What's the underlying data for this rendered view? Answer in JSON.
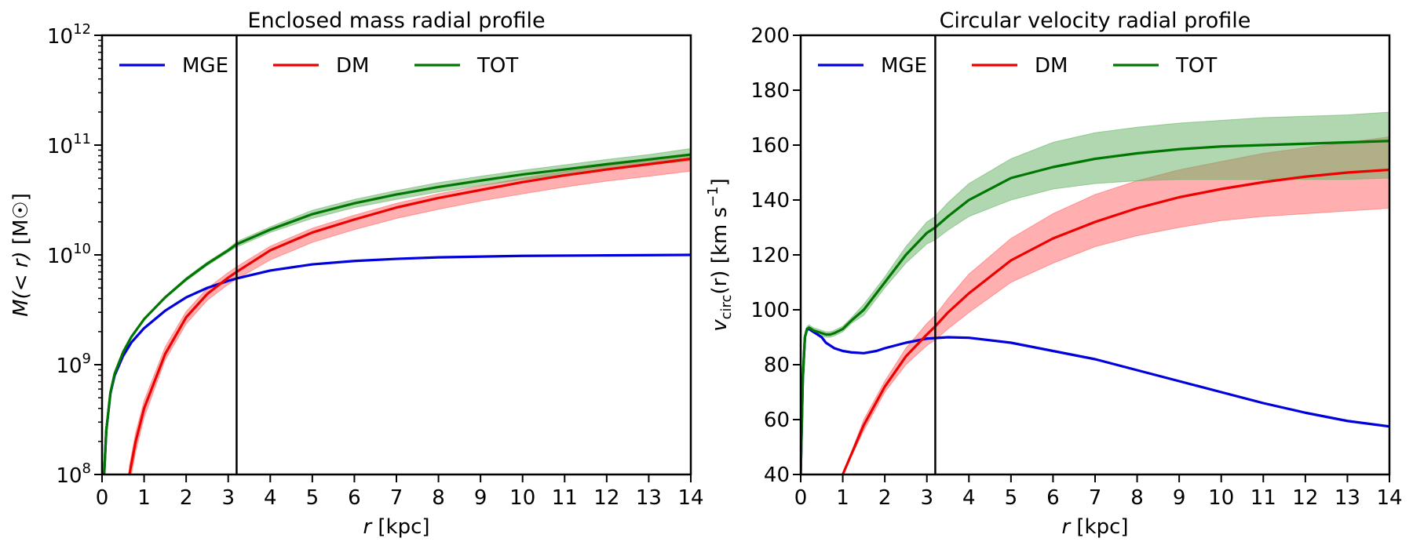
{
  "colors": {
    "MGE": "#0000dd",
    "DM": "#ee0000",
    "TOT": "#007700",
    "DM_band": "#ff6060",
    "TOT_band": "#62b062",
    "divider": "#000000"
  },
  "chart_data": [
    {
      "type": "line",
      "title": "Enclosed mass radial profile",
      "xlabel_var": "r",
      "xlabel_unit": "[kpc]",
      "ylabel_var": "M(< r)",
      "ylabel_unit": "[M☉]",
      "yscale": "log",
      "xlim": [
        0,
        14
      ],
      "ylim": [
        100000000.0,
        1000000000000.0
      ],
      "xticks": [
        0,
        1,
        2,
        3,
        4,
        5,
        6,
        7,
        8,
        9,
        10,
        11,
        12,
        13,
        14
      ],
      "yticks": [
        {
          "value": 100000000.0,
          "base": "10",
          "exp": "8"
        },
        {
          "value": 1000000000.0,
          "base": "10",
          "exp": "9"
        },
        {
          "value": 10000000000.0,
          "base": "10",
          "exp": "10"
        },
        {
          "value": 100000000000.0,
          "base": "10",
          "exp": "11"
        },
        {
          "value": 1000000000000.0,
          "base": "10",
          "exp": "12"
        }
      ],
      "vline_x": 3.2,
      "legend": [
        "MGE",
        "DM",
        "TOT"
      ],
      "legend_position": "top",
      "series": [
        {
          "name": "MGE",
          "x": [
            0.05,
            0.1,
            0.2,
            0.3,
            0.5,
            0.7,
            1,
            1.5,
            2,
            2.5,
            3,
            3.2,
            4,
            5,
            6,
            7,
            8,
            10,
            12,
            14
          ],
          "y": [
            100000000.0,
            250000000.0,
            550000000.0,
            800000000.0,
            1200000000.0,
            1600000000.0,
            2150000000.0,
            3100000000.0,
            4100000000.0,
            5000000000.0,
            5800000000.0,
            6100000000.0,
            7200000000.0,
            8200000000.0,
            8800000000.0,
            9200000000.0,
            9500000000.0,
            9800000000.0,
            9900000000.0,
            10000000000.0
          ]
        },
        {
          "name": "DM",
          "x": [
            0.65,
            0.8,
            1,
            1.5,
            2,
            2.5,
            3,
            3.2,
            4,
            5,
            6,
            7,
            8,
            9,
            10,
            11,
            12,
            13,
            14
          ],
          "y": [
            100000000.0,
            200000000.0,
            400000000.0,
            1250000000.0,
            2700000000.0,
            4400000000.0,
            6200000000.0,
            7000000000.0,
            11000000000.0,
            16000000000.0,
            21000000000.0,
            27000000000.0,
            33000000000.0,
            39000000000.0,
            46000000000.0,
            53000000000.0,
            60000000000.0,
            67000000000.0,
            75000000000.0
          ],
          "y_low": [
            80000000.0,
            160000000.0,
            330000000.0,
            1100000000.0,
            2350000000.0,
            3850000000.0,
            5400000000.0,
            6000000000.0,
            9000000000.0,
            13000000000.0,
            17000000000.0,
            21500000000.0,
            26000000000.0,
            31000000000.0,
            36000000000.0,
            41500000000.0,
            47000000000.0,
            52000000000.0,
            58000000000.0
          ],
          "y_high": [
            120000000.0,
            240000000.0,
            470000000.0,
            1450000000.0,
            3050000000.0,
            4950000000.0,
            6900000000.0,
            7800000000.0,
            12000000000.0,
            17500000000.0,
            23000000000.0,
            29500000000.0,
            36000000000.0,
            42500000000.0,
            50000000000.0,
            57500000000.0,
            65000000000.0,
            73000000000.0,
            81000000000.0
          ]
        },
        {
          "name": "TOT",
          "x": [
            0.05,
            0.1,
            0.2,
            0.3,
            0.5,
            0.7,
            1,
            1.5,
            2,
            2.5,
            3,
            3.2,
            4,
            5,
            6,
            7,
            8,
            9,
            10,
            11,
            12,
            13,
            14
          ],
          "y": [
            100000000.0,
            250000000.0,
            560000000.0,
            830000000.0,
            1300000000.0,
            1800000000.0,
            2600000000.0,
            4100000000.0,
            6000000000.0,
            8300000000.0,
            11000000000.0,
            12500000000.0,
            17000000000.0,
            23500000000.0,
            29500000000.0,
            35500000000.0,
            41500000000.0,
            47500000000.0,
            54000000000.0,
            60000000000.0,
            67000000000.0,
            74000000000.0,
            82000000000.0
          ],
          "y_low": [
            95000000.0,
            240000000.0,
            540000000.0,
            800000000.0,
            1250000000.0,
            1750000000.0,
            2550000000.0,
            4000000000.0,
            5800000000.0,
            8000000000.0,
            10600000000.0,
            11800000000.0,
            16000000000.0,
            21500000000.0,
            27000000000.0,
            32000000000.0,
            37500000000.0,
            43000000000.0,
            48500000000.0,
            54000000000.0,
            60000000000.0,
            66000000000.0,
            72000000000.0
          ],
          "y_high": [
            105000000.0,
            260000000.0,
            580000000.0,
            860000000.0,
            1350000000.0,
            1850000000.0,
            2650000000.0,
            4200000000.0,
            6200000000.0,
            8600000000.0,
            11400000000.0,
            13200000000.0,
            18000000000.0,
            25500000000.0,
            32000000000.0,
            38500000000.0,
            45500000000.0,
            52000000000.0,
            59000000000.0,
            66000000000.0,
            74000000000.0,
            82000000000.0,
            93000000000.0
          ]
        }
      ]
    },
    {
      "type": "line",
      "title": "Circular velocity radial profile",
      "xlabel_var": "r",
      "xlabel_unit": "[kpc]",
      "ylabel_var": "v",
      "ylabel_sub": "circ",
      "ylabel_arg": "(r)",
      "ylabel_unit": "[km s",
      "ylabel_unit_exp": "−1",
      "ylabel_unit_close": "]",
      "yscale": "linear",
      "xlim": [
        0,
        14
      ],
      "ylim": [
        40,
        200
      ],
      "xticks": [
        0,
        1,
        2,
        3,
        4,
        5,
        6,
        7,
        8,
        9,
        10,
        11,
        12,
        13,
        14
      ],
      "yticks": [
        40,
        60,
        80,
        100,
        120,
        140,
        160,
        180,
        200
      ],
      "vline_x": 3.2,
      "legend": [
        "MGE",
        "DM",
        "TOT"
      ],
      "legend_position": "top",
      "series": [
        {
          "name": "MGE",
          "x": [
            0,
            0.05,
            0.1,
            0.15,
            0.2,
            0.3,
            0.4,
            0.5,
            0.6,
            0.7,
            0.8,
            1,
            1.2,
            1.5,
            1.8,
            2,
            2.5,
            3,
            3.5,
            4,
            5,
            6,
            7,
            8,
            9,
            10,
            11,
            12,
            13,
            14
          ],
          "y": [
            40,
            75,
            90,
            93,
            93,
            92,
            91,
            90,
            88,
            87,
            86,
            85,
            84.5,
            84.2,
            85,
            86,
            88,
            89.5,
            90,
            89.8,
            88,
            85,
            82,
            78,
            74,
            70,
            66,
            62.5,
            59.5,
            57.5
          ]
        },
        {
          "name": "DM",
          "x": [
            1,
            1.5,
            2,
            2.5,
            3,
            3.2,
            3.5,
            4,
            5,
            6,
            7,
            8,
            9,
            10,
            11,
            12,
            13,
            14
          ],
          "y": [
            40,
            58,
            72,
            83,
            91,
            94,
            99,
            106,
            118,
            126,
            132,
            137,
            141,
            144,
            146.5,
            148.5,
            150,
            151
          ],
          "y_low": [
            40,
            56,
            70,
            80,
            87,
            89,
            93,
            99,
            110,
            117,
            123,
            127,
            130,
            132.5,
            134,
            135,
            136,
            137
          ],
          "y_high": [
            40,
            60,
            74,
            86,
            95,
            98,
            104,
            113,
            126,
            135,
            142,
            147,
            151,
            154,
            157,
            159,
            161,
            163
          ]
        },
        {
          "name": "TOT",
          "x": [
            0,
            0.05,
            0.1,
            0.15,
            0.2,
            0.3,
            0.4,
            0.5,
            0.6,
            0.7,
            0.8,
            1,
            1.2,
            1.5,
            1.8,
            2,
            2.5,
            3,
            3.2,
            3.5,
            4,
            5,
            6,
            7,
            8,
            9,
            10,
            11,
            12,
            13,
            14
          ],
          "y": [
            40,
            75,
            90,
            93,
            93.5,
            92.5,
            92,
            91.5,
            91,
            91,
            91.5,
            93,
            96,
            100,
            106,
            110,
            120,
            128,
            130,
            134,
            140,
            148,
            152,
            155,
            157,
            158.5,
            159.5,
            160,
            160.5,
            161,
            161.5
          ],
          "y_low": [
            40,
            74,
            89,
            92,
            92.5,
            91.5,
            91,
            90.5,
            90,
            90,
            90.5,
            92,
            95,
            98,
            104,
            108,
            117,
            124,
            125.5,
            129,
            134,
            140,
            144,
            146,
            147,
            147.5,
            147.5,
            147.5,
            147.5,
            147.5,
            148
          ],
          "y_high": [
            40,
            76,
            91,
            94,
            94.5,
            93.5,
            93,
            92.5,
            92,
            92,
            92.5,
            94,
            97,
            102,
            108,
            112,
            123,
            132,
            134,
            139,
            146,
            155,
            161,
            164.5,
            166.5,
            168,
            169,
            170,
            170.5,
            171,
            172
          ]
        }
      ]
    }
  ]
}
